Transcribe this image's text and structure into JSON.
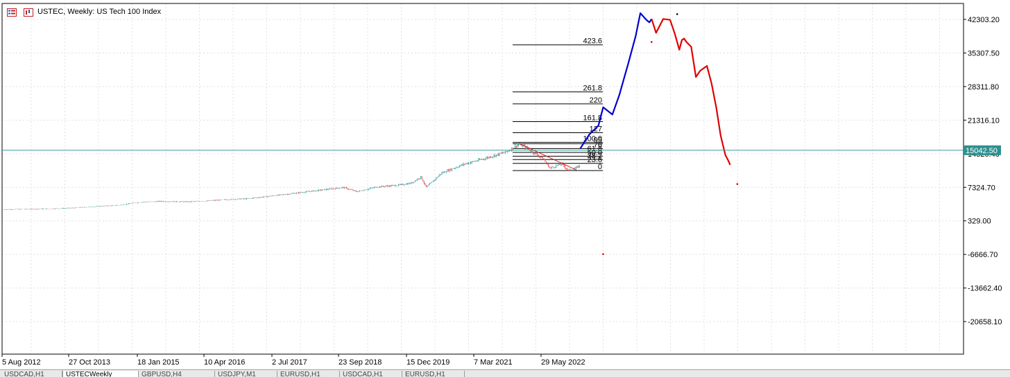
{
  "chart_title": "USTEC, Weekly:  US Tech 100 Index",
  "icons": [
    "chart-list-icon",
    "chart-type-icon"
  ],
  "current_price_label": "15042.50",
  "tabs": [
    "USDCAD,H1",
    "USTECWeekly",
    "GBPUSD,H4",
    "USDJPY,M1",
    "EURUSD,H1",
    "USDCAD,H1",
    "EURUSD,H1"
  ],
  "active_tab_index": 1,
  "colors": {
    "grid": "#e0e0e0",
    "price_line": "#3a9e9e",
    "price_label_bg": "#2e9090",
    "candle_up": "#2ea3a3",
    "candle_down": "#e05050",
    "projection_up": "#0000d0",
    "projection_down": "#e00000",
    "trendline": "#d02020"
  },
  "chart_data": {
    "type": "line",
    "title": "USTEC, Weekly:  US Tech 100 Index",
    "y_ticks": [
      "42303.20",
      "35307.50",
      "28311.80",
      "21316.10",
      "14320.40",
      "7324.70",
      "329.00",
      "-6666.70",
      "-13662.40",
      "-20658.10"
    ],
    "y_tick_values": [
      42303.2,
      35307.5,
      28311.8,
      21316.1,
      14320.4,
      7324.7,
      329.0,
      -6666.7,
      -13662.4,
      -20658.1
    ],
    "x_ticks": [
      "5 Aug 2012",
      "27 Oct 2013",
      "18 Jan 2015",
      "10 Apr 2016",
      "2 Jul 2017",
      "23 Sep 2018",
      "15 Dec 2019",
      "7 Mar 2021",
      "29 May 2022"
    ],
    "current_price": 15042.5,
    "series": [
      {
        "x": [
          "2012-08-05",
          "2013-01-01",
          "2013-06-01",
          "2013-10-27",
          "2014-04-01",
          "2014-09-01",
          "2015-01-18",
          "2015-06-01",
          "2015-12-01",
          "2016-04-10",
          "2016-09-01",
          "2017-01-01",
          "2017-07-02",
          "2018-01-01",
          "2018-08-01",
          "2018-09-23",
          "2018-12-20",
          "2019-05-01",
          "2019-10-01",
          "2019-12-15",
          "2020-02-15",
          "2020-03-22",
          "2020-07-01",
          "2020-12-01",
          "2021-03-07",
          "2021-09-01",
          "2021-11-21",
          "2022-01-01",
          "2022-05-01",
          "2022-06-15",
          "2022-09-01",
          "2022-10-15",
          "2022-12-15",
          "2023-01-01"
        ],
        "values": [
          2700,
          2750,
          2850,
          3000,
          3300,
          3600,
          4200,
          4400,
          4300,
          4500,
          4800,
          4950,
          5600,
          6300,
          7100,
          7300,
          6400,
          7400,
          7800,
          8200,
          9500,
          7300,
          10300,
          12200,
          13000,
          14700,
          16300,
          15700,
          13300,
          11300,
          12200,
          10800,
          11500,
          11900
        ]
      },
      {
        "name": "projection-up",
        "x": [
          "2023-01-01",
          "2023-03-01",
          "2023-05-01",
          "2023-06-01",
          "2023-08-01",
          "2023-09-15",
          "2023-11-15",
          "2024-01-01",
          "2024-02-01",
          "2024-03-15",
          "2024-04-01",
          "2024-04-15"
        ],
        "values": [
          15400,
          18300,
          20200,
          24000,
          22500,
          26500,
          33300,
          38800,
          43600,
          42100,
          41700,
          42400
        ]
      },
      {
        "name": "projection-down",
        "x": [
          "2024-04-15",
          "2024-05-15",
          "2024-07-01",
          "2024-08-15",
          "2024-09-15",
          "2024-10-15",
          "2024-11-01",
          "2024-11-15",
          "2024-12-01",
          "2025-01-01",
          "2025-02-01",
          "2025-03-01",
          "2025-04-15",
          "2025-05-15",
          "2025-06-15",
          "2025-07-15",
          "2025-08-15",
          "2025-09-01",
          "2025-09-15"
        ],
        "values": [
          42400,
          39500,
          42400,
          42200,
          39300,
          36000,
          38000,
          38300,
          37600,
          36600,
          30300,
          31600,
          32600,
          29000,
          24000,
          18000,
          14000,
          13000,
          12000
        ]
      }
    ],
    "fibonacci": {
      "levels": [
        "423.6",
        "261.8",
        "220",
        "161.8",
        "127",
        "100.0",
        "95",
        "76",
        "61.8",
        "50.0",
        "38.2",
        "23.6",
        "0"
      ],
      "level_prices": [
        37000,
        27200,
        24700,
        21000,
        18700,
        16700,
        16400,
        15400,
        14600,
        13800,
        13100,
        12300,
        10800
      ]
    },
    "trendline": {
      "from": [
        "2021-11-21",
        16500
      ],
      "to": [
        "2022-12-15",
        10800
      ]
    },
    "marks": [
      {
        "x": "2023-06-01",
        "y": -6600
      },
      {
        "x": "2025-11-01",
        "y": 8000
      },
      {
        "x": "2024-10-01",
        "y": 43400
      },
      {
        "x": "2024-04-15",
        "y": 37600
      }
    ]
  }
}
